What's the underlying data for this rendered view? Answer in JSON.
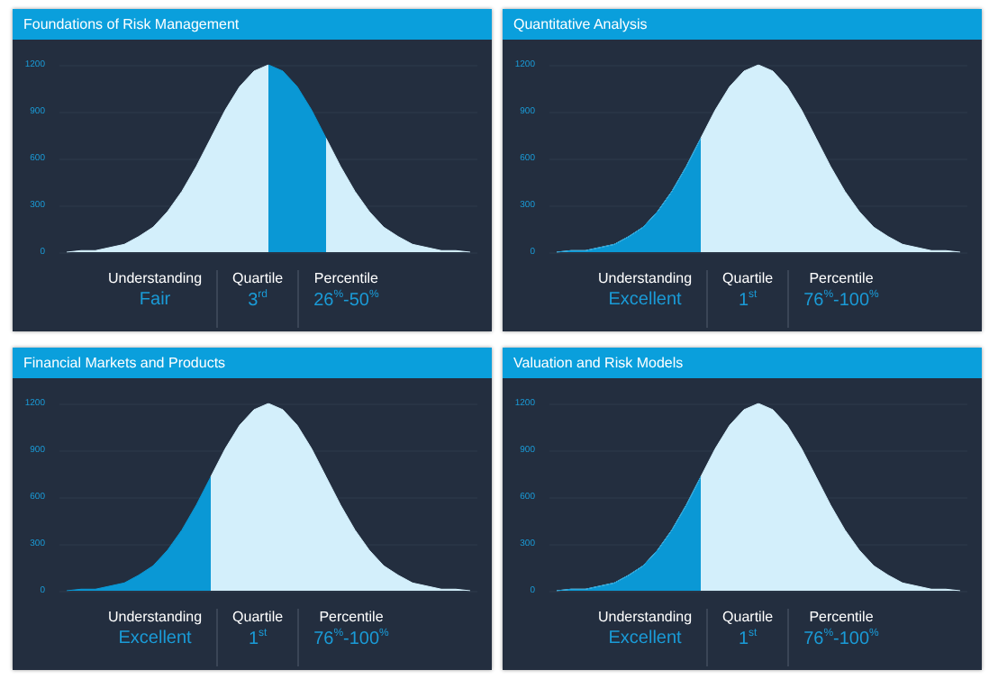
{
  "chart_data": [
    {
      "type": "area",
      "title": "Foundations of Risk Management",
      "categories": [
        null,
        null,
        null,
        null,
        null,
        null,
        null,
        null,
        null,
        null,
        null,
        null,
        null,
        null,
        null,
        null,
        null,
        null,
        null,
        null,
        null,
        null,
        null,
        null,
        null,
        null,
        null,
        null,
        null
      ],
      "series": [
        {
          "color": "#d3effb",
          "values": [
            0,
            10,
            10,
            30,
            50,
            100,
            160,
            260,
            390,
            550,
            730,
            910,
            1060,
            1160,
            1200,
            null,
            null,
            null,
            null,
            null,
            null,
            null,
            null,
            null,
            null,
            null,
            null,
            null,
            null
          ]
        },
        {
          "color": "#0a98d5",
          "values": [
            null,
            null,
            null,
            null,
            null,
            null,
            null,
            null,
            null,
            null,
            null,
            null,
            null,
            null,
            1200,
            1160,
            1060,
            910,
            730,
            null,
            null,
            null,
            null,
            null,
            null,
            null,
            null,
            null,
            null
          ]
        },
        {
          "color": "#d3effb",
          "values": [
            null,
            null,
            null,
            null,
            null,
            null,
            null,
            null,
            null,
            null,
            null,
            null,
            null,
            null,
            null,
            null,
            null,
            null,
            730,
            550,
            390,
            260,
            160,
            100,
            50,
            30,
            10,
            10,
            0
          ]
        }
      ],
      "ylim": [
        0,
        1200
      ],
      "yticks": [
        0,
        300,
        600,
        900,
        1200
      ],
      "grid": "y",
      "tick_labels": "y",
      "annotations": [
        "Understanding",
        "Fair",
        "Quartile",
        "3$^{rd}$",
        "Percentile",
        "26$^{%}$-50$^{%}$"
      ]
    },
    {
      "type": "area",
      "title": "Quantitative Analysis",
      "categories": [
        null,
        null,
        null,
        null,
        null,
        null,
        null,
        null,
        null,
        null,
        null,
        null,
        null,
        null,
        null,
        null,
        null,
        null,
        null,
        null,
        null,
        null,
        null,
        null,
        null,
        null,
        null,
        null,
        null
      ],
      "series": [
        {
          "color": "#d3effb",
          "values": [
            0,
            10,
            10,
            30,
            50,
            100,
            160,
            260,
            390,
            550,
            730,
            910,
            1060,
            1160,
            1200,
            1160,
            1060,
            910,
            730,
            550,
            390,
            260,
            160,
            100,
            50,
            30,
            10,
            10,
            0
          ]
        },
        {
          "color": "#0a98d5",
          "values": [
            0,
            10,
            10,
            30,
            50,
            100,
            160,
            260,
            390,
            550,
            730,
            null,
            null,
            null,
            null,
            null,
            null,
            null,
            null,
            null,
            null,
            null,
            null,
            null,
            null,
            null,
            null,
            null,
            null
          ]
        }
      ],
      "ylim": [
        0,
        1200
      ],
      "yticks": [
        0,
        300,
        600,
        900,
        1200
      ],
      "grid": "y",
      "tick_labels": "y",
      "annotations": [
        "Understanding",
        "Excellent",
        "Quartile",
        "1$^{st}$",
        "Percentile",
        "76$^{%}$-100$^{%}$"
      ]
    },
    {
      "type": "area",
      "title": "Financial Markets and Products",
      "categories": [
        null,
        null,
        null,
        null,
        null,
        null,
        null,
        null,
        null,
        null,
        null,
        null,
        null,
        null,
        null,
        null,
        null,
        null,
        null,
        null,
        null,
        null,
        null,
        null,
        null,
        null,
        null,
        null,
        null
      ],
      "series": [
        {
          "color": "#0a98d5",
          "values": [
            0,
            10,
            10,
            30,
            50,
            100,
            160,
            260,
            390,
            550,
            730,
            null,
            null,
            null,
            null,
            null,
            null,
            null,
            null,
            null,
            null,
            null,
            null,
            null,
            null,
            null,
            null,
            null,
            null
          ]
        },
        {
          "color": "#d3effb",
          "values": [
            null,
            null,
            null,
            null,
            null,
            null,
            null,
            null,
            null,
            null,
            730,
            910,
            1060,
            1160,
            1200,
            1160,
            1060,
            910,
            730,
            550,
            390,
            260,
            160,
            100,
            50,
            30,
            10,
            10,
            0
          ]
        }
      ],
      "ylim": [
        0,
        1200
      ],
      "yticks": [
        0,
        300,
        600,
        900,
        1200
      ],
      "grid": "y",
      "tick_labels": "y",
      "annotations": [
        "Understanding",
        "Excellent",
        "Quartile",
        "1$^{st}$",
        "Percentile",
        "76$^{%}$-100$^{%}$"
      ]
    },
    {
      "type": "area",
      "title": "Valuation and Risk Models",
      "categories": [
        null,
        null,
        null,
        null,
        null,
        null,
        null,
        null,
        null,
        null,
        null,
        null,
        null,
        null,
        null,
        null,
        null,
        null,
        null,
        null,
        null,
        null,
        null,
        null,
        null,
        null,
        null,
        null,
        null
      ],
      "series": [
        {
          "color": "#d3effb",
          "values": [
            0,
            10,
            10,
            30,
            50,
            100,
            160,
            260,
            390,
            550,
            730,
            910,
            1060,
            1160,
            1200,
            1160,
            1060,
            910,
            730,
            550,
            390,
            260,
            160,
            100,
            50,
            30,
            10,
            10,
            0
          ]
        },
        {
          "color": "#0a98d5",
          "values": [
            0,
            10,
            10,
            30,
            50,
            100,
            160,
            260,
            390,
            550,
            730,
            null,
            null,
            null,
            null,
            null,
            null,
            null,
            null,
            null,
            null,
            null,
            null,
            null,
            null,
            null,
            null,
            null,
            null
          ]
        }
      ],
      "ylim": [
        0,
        1200
      ],
      "yticks": [
        0,
        300,
        600,
        900,
        1200
      ],
      "grid": "y",
      "tick_labels": "y",
      "annotations": [
        "Understanding",
        "Excellent",
        "Quartile",
        "1$^{st}$",
        "Percentile",
        "76$^{%}$-100$^{%}$"
      ]
    }
  ]
}
